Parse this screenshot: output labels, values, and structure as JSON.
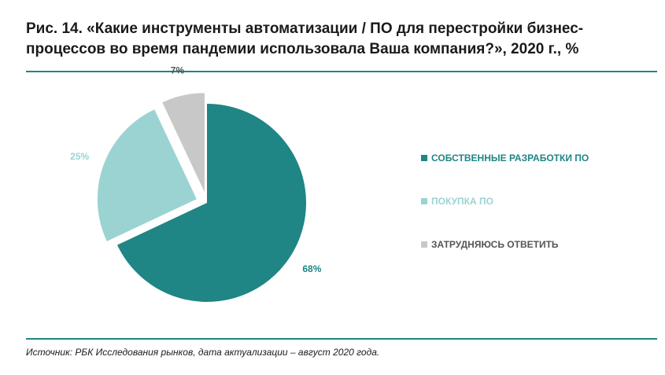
{
  "figure": {
    "title": "Рис. 14. «Какие инструменты автоматизации / ПО для перестройки бизнес-процессов во время пандемии использовала Ваша компания?», 2020 г., %",
    "source": "Источник: РБК Исследования рынков, дата актуализации – август 2020 года."
  },
  "chart_data": {
    "type": "pie",
    "title": "Рис. 14. «Какие инструменты автоматизации / ПО для перестройки бизнес-процессов во время пандемии использовала Ваша компания?», 2020 г., %",
    "categories": [
      "СОБСТВЕННЫЕ РАЗРАБОТКИ ПО",
      "ПОКУПКА ПО",
      "ЗАТРУДНЯЮСЬ ОТВЕТИТЬ"
    ],
    "values": [
      68,
      25,
      7
    ],
    "value_labels": [
      "68%",
      "25%",
      "7%"
    ],
    "colors": [
      "#1f8585",
      "#9bd3d3",
      "#c8c8c8"
    ],
    "label_colors": [
      "#1f8585",
      "#9bd3d3",
      "#555555"
    ],
    "exploded": [
      false,
      true,
      true
    ],
    "legend_position": "right",
    "unit": "%"
  }
}
